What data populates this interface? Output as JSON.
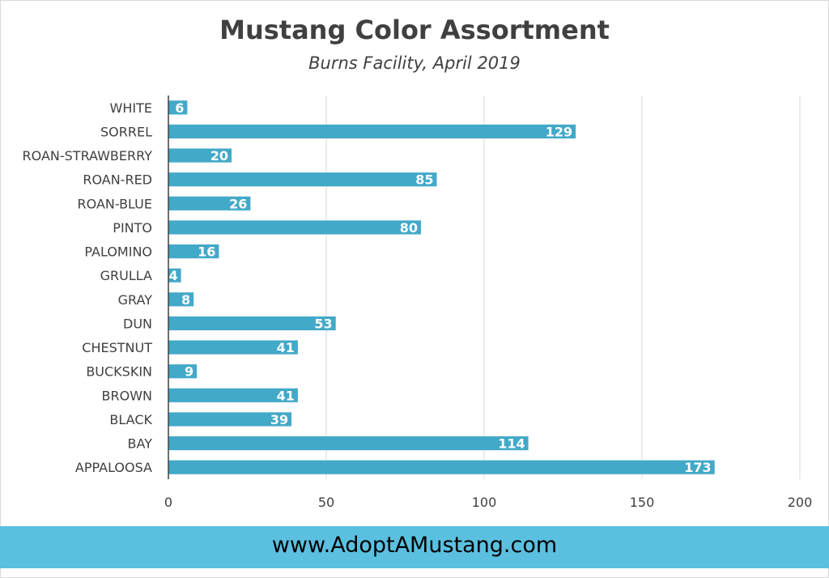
{
  "chart_data": {
    "type": "bar",
    "orientation": "horizontal",
    "title": "Mustang Color Assortment",
    "subtitle": "Burns Facility, April 2019",
    "categories": [
      "WHITE",
      "SORREL",
      "ROAN-STRAWBERRY",
      "ROAN-RED",
      "ROAN-BLUE",
      "PINTO",
      "PALOMINO",
      "GRULLA",
      "GRAY",
      "DUN",
      "CHESTNUT",
      "BUCKSKIN",
      "BROWN",
      "BLACK",
      "BAY",
      "APPALOOSA"
    ],
    "values": [
      6,
      129,
      20,
      85,
      26,
      80,
      16,
      4,
      8,
      53,
      41,
      9,
      41,
      39,
      114,
      173
    ],
    "data_labels": [
      "6",
      "129",
      "20",
      "85",
      "26",
      "80",
      "16",
      "4",
      "8",
      "53",
      "41",
      "9",
      "41",
      "39",
      "114",
      "173"
    ],
    "xlim": [
      0,
      200
    ],
    "xticks": [
      "0",
      "50",
      "100",
      "150",
      "200"
    ],
    "grid": true,
    "bar_color": "#43a9c8",
    "grid_color": "#d9d9d9"
  },
  "footer": {
    "text": "www.AdoptAMustang.com",
    "color": "#5bc0e0"
  }
}
